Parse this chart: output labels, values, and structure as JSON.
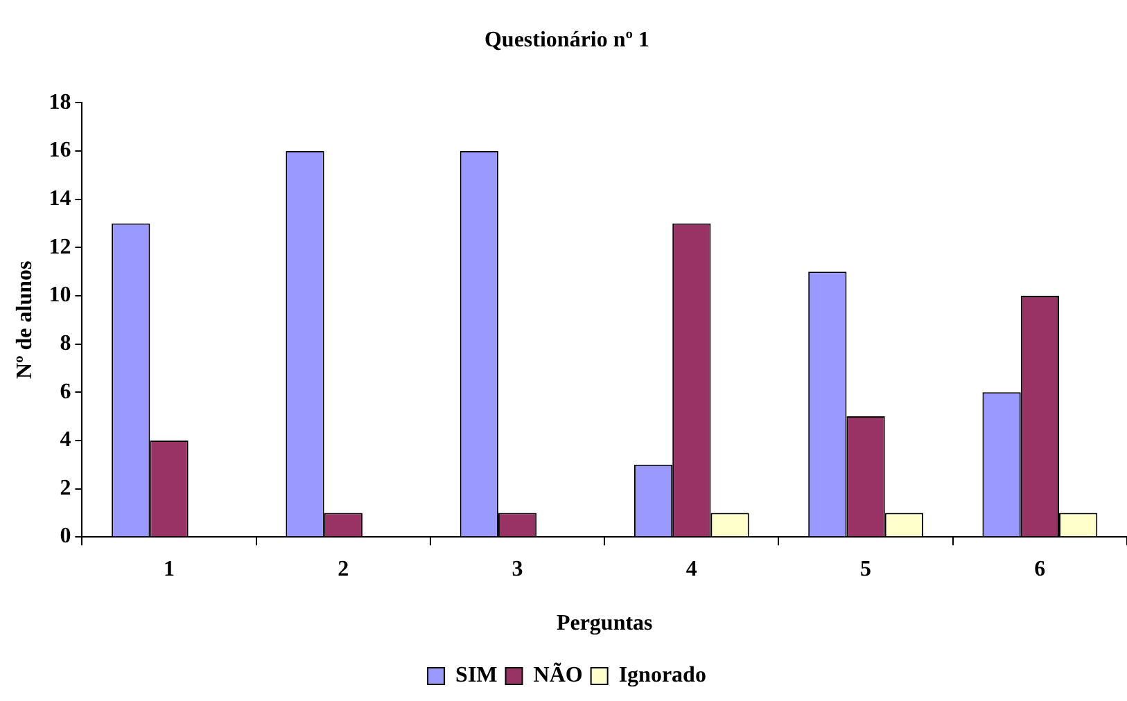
{
  "chart_data": {
    "type": "bar",
    "title": "Questionário nº 1",
    "xlabel": "Perguntas",
    "ylabel": "Nº de alunos",
    "categories": [
      "1",
      "2",
      "3",
      "4",
      "5",
      "6"
    ],
    "series": [
      {
        "name": "SIM",
        "color": "#9999ff",
        "values": [
          13,
          16,
          16,
          3,
          11,
          6
        ]
      },
      {
        "name": "NÃO",
        "color": "#993366",
        "values": [
          4,
          1,
          1,
          13,
          5,
          10
        ]
      },
      {
        "name": "Ignorado",
        "color": "#ffffcc",
        "values": [
          0,
          0,
          0,
          1,
          1,
          1
        ]
      }
    ],
    "ylim": [
      0,
      18
    ],
    "yticks": [
      0,
      2,
      4,
      6,
      8,
      10,
      12,
      14,
      16,
      18
    ],
    "grid": false,
    "legend": "bottom"
  }
}
